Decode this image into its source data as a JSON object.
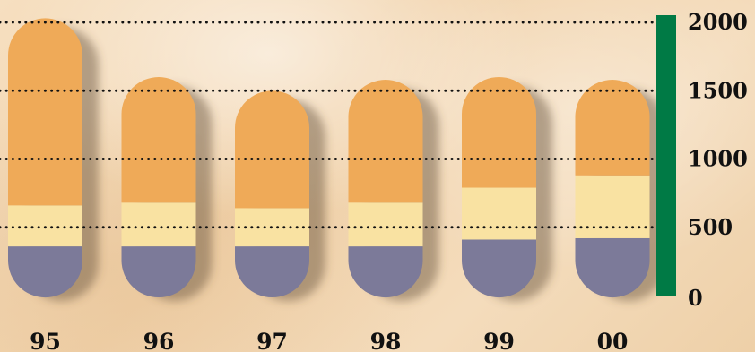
{
  "chart_data": {
    "type": "bar",
    "stacked": true,
    "categories": [
      "95",
      "96",
      "97",
      "98",
      "99",
      "00"
    ],
    "series": [
      {
        "values": [
          360,
          360,
          360,
          360,
          410,
          420
        ],
        "color": "#7c7a99"
      },
      {
        "values": [
          300,
          320,
          280,
          320,
          380,
          460
        ],
        "color": "#f9e2a2"
      },
      {
        "values": [
          1370,
          920,
          860,
          900,
          810,
          700
        ],
        "color": "#efaa58"
      }
    ],
    "ylim": [
      0,
      2000
    ],
    "yticks": [
      "0",
      "500",
      "1000",
      "1500",
      "2000"
    ],
    "grid": "dotted",
    "axis_color": "#007a45"
  }
}
